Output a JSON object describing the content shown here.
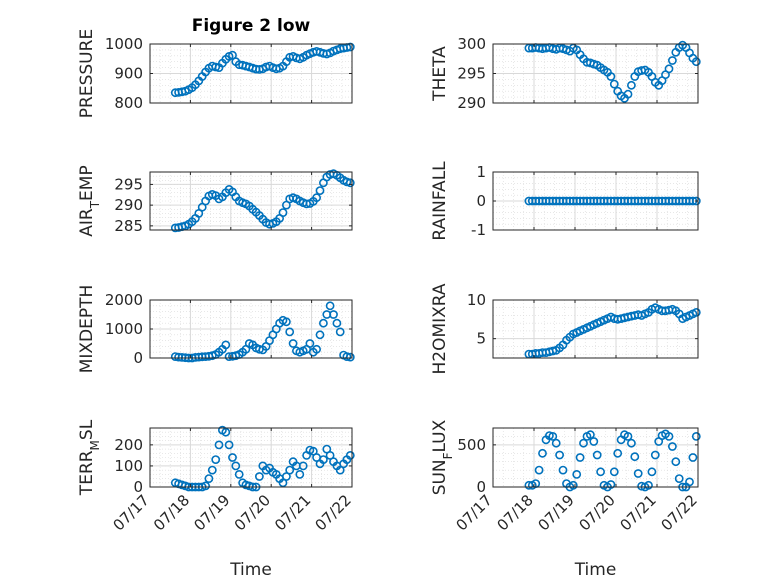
{
  "figure": {
    "title": "Figure 2 low",
    "marker_color": "#0072BD",
    "axis_color": "#262626",
    "grid_color": "#d9d9d9"
  },
  "chart_data": [
    {
      "type": "scatter",
      "title": "Figure 2 low",
      "ylabel": "PRESSURE",
      "xlabel": "",
      "xlim": [
        "07/17",
        "07/22"
      ],
      "ylim": [
        800,
        1000
      ],
      "yticks": [
        800,
        900,
        1000
      ],
      "xticks": [
        "07/17",
        "07/18",
        "07/19",
        "07/20",
        "07/21",
        "07/22"
      ],
      "x": [
        "07/17 15:00",
        "07/17 17:00",
        "07/17 19:00",
        "07/17 21:00",
        "07/17 23:00",
        "07/18 01:00",
        "07/18 03:00",
        "07/18 05:00",
        "07/18 07:00",
        "07/18 09:00",
        "07/18 11:00",
        "07/18 13:00",
        "07/18 15:00",
        "07/18 17:00",
        "07/18 19:00",
        "07/18 21:00",
        "07/18 23:00",
        "07/19 01:00",
        "07/19 03:00",
        "07/19 05:00",
        "07/19 07:00",
        "07/19 09:00",
        "07/19 11:00",
        "07/19 13:00",
        "07/19 15:00",
        "07/19 17:00",
        "07/19 19:00",
        "07/19 21:00",
        "07/19 23:00",
        "07/20 01:00",
        "07/20 03:00",
        "07/20 05:00",
        "07/20 07:00",
        "07/20 09:00",
        "07/20 11:00",
        "07/20 13:00",
        "07/20 15:00",
        "07/20 17:00",
        "07/20 19:00",
        "07/20 21:00",
        "07/20 23:00",
        "07/21 01:00",
        "07/21 03:00",
        "07/21 05:00",
        "07/21 07:00",
        "07/21 09:00",
        "07/21 11:00",
        "07/21 13:00",
        "07/21 15:00",
        "07/21 17:00",
        "07/21 19:00",
        "07/21 21:00",
        "07/21 23:00"
      ],
      "y": [
        835,
        836,
        838,
        840,
        845,
        852,
        862,
        875,
        890,
        905,
        918,
        925,
        922,
        920,
        935,
        948,
        958,
        962,
        940,
        930,
        928,
        925,
        922,
        918,
        915,
        914,
        916,
        922,
        925,
        920,
        916,
        918,
        925,
        940,
        955,
        958,
        953,
        950,
        955,
        962,
        967,
        972,
        975,
        972,
        968,
        966,
        970,
        976,
        980,
        984,
        986,
        988,
        990
      ]
    },
    {
      "type": "scatter",
      "title": "",
      "ylabel": "THETA",
      "xlabel": "",
      "xlim": [
        "07/17",
        "07/22"
      ],
      "ylim": [
        290,
        300
      ],
      "yticks": [
        290,
        295,
        300
      ],
      "xticks": [
        "07/17",
        "07/18",
        "07/19",
        "07/20",
        "07/21",
        "07/22"
      ],
      "x": [
        "07/17 21:00",
        "07/17 23:00",
        "07/18 01:00",
        "07/18 03:00",
        "07/18 05:00",
        "07/18 07:00",
        "07/18 09:00",
        "07/18 11:00",
        "07/18 13:00",
        "07/18 15:00",
        "07/18 17:00",
        "07/18 19:00",
        "07/18 21:00",
        "07/18 23:00",
        "07/19 01:00",
        "07/19 03:00",
        "07/19 05:00",
        "07/19 07:00",
        "07/19 09:00",
        "07/19 11:00",
        "07/19 13:00",
        "07/19 15:00",
        "07/19 17:00",
        "07/19 19:00",
        "07/19 21:00",
        "07/19 23:00",
        "07/20 01:00",
        "07/20 03:00",
        "07/20 05:00",
        "07/20 07:00",
        "07/20 09:00",
        "07/20 11:00",
        "07/20 13:00",
        "07/20 15:00",
        "07/20 17:00",
        "07/20 19:00",
        "07/20 21:00",
        "07/20 23:00",
        "07/21 01:00",
        "07/21 03:00",
        "07/21 05:00",
        "07/21 07:00",
        "07/21 09:00",
        "07/21 11:00",
        "07/21 13:00",
        "07/21 15:00",
        "07/21 17:00",
        "07/21 19:00",
        "07/21 21:00",
        "07/21 23:00"
      ],
      "y": [
        299.3,
        299.3,
        299.4,
        299.3,
        299.2,
        299.3,
        299.4,
        299.2,
        299.1,
        299.3,
        299.2,
        299.0,
        298.8,
        299.3,
        299.0,
        298.2,
        297.5,
        296.9,
        296.8,
        296.6,
        296.4,
        296.0,
        295.6,
        295.2,
        294.5,
        293.2,
        292.0,
        291.2,
        290.8,
        291.5,
        293.0,
        294.5,
        295.3,
        295.5,
        295.6,
        295.2,
        294.5,
        293.5,
        293.0,
        293.8,
        294.8,
        295.8,
        297.2,
        298.6,
        299.4,
        299.8,
        299.4,
        298.5,
        297.6,
        297.0
      ]
    },
    {
      "type": "scatter",
      "title": "",
      "ylabel": "AIR_TEMP",
      "xlabel": "",
      "xlim": [
        "07/17",
        "07/22"
      ],
      "ylim": [
        284,
        298
      ],
      "yticks": [
        285,
        290,
        295
      ],
      "xticks": [
        "07/17",
        "07/18",
        "07/19",
        "07/20",
        "07/21",
        "07/22"
      ],
      "x": [
        "07/17 15:00",
        "07/17 17:00",
        "07/17 19:00",
        "07/17 21:00",
        "07/17 23:00",
        "07/18 01:00",
        "07/18 03:00",
        "07/18 05:00",
        "07/18 07:00",
        "07/18 09:00",
        "07/18 11:00",
        "07/18 13:00",
        "07/18 15:00",
        "07/18 17:00",
        "07/18 19:00",
        "07/18 21:00",
        "07/18 23:00",
        "07/19 01:00",
        "07/19 03:00",
        "07/19 05:00",
        "07/19 07:00",
        "07/19 09:00",
        "07/19 11:00",
        "07/19 13:00",
        "07/19 15:00",
        "07/19 17:00",
        "07/19 19:00",
        "07/19 21:00",
        "07/19 23:00",
        "07/20 01:00",
        "07/20 03:00",
        "07/20 05:00",
        "07/20 07:00",
        "07/20 09:00",
        "07/20 11:00",
        "07/20 13:00",
        "07/20 15:00",
        "07/20 17:00",
        "07/20 19:00",
        "07/20 21:00",
        "07/20 23:00",
        "07/21 01:00",
        "07/21 03:00",
        "07/21 05:00",
        "07/21 07:00",
        "07/21 09:00",
        "07/21 11:00",
        "07/21 13:00",
        "07/21 15:00",
        "07/21 17:00",
        "07/21 19:00",
        "07/21 21:00",
        "07/21 23:00"
      ],
      "y": [
        284.5,
        284.6,
        284.8,
        285.0,
        285.4,
        286.0,
        286.8,
        288.0,
        289.5,
        291.0,
        292.2,
        292.6,
        292.3,
        291.5,
        292.0,
        293.0,
        293.8,
        293.2,
        292.0,
        291.0,
        290.6,
        290.3,
        289.8,
        289.0,
        288.3,
        287.5,
        286.6,
        285.8,
        285.4,
        285.6,
        286.0,
        286.8,
        288.2,
        290.0,
        291.5,
        291.8,
        291.5,
        291.0,
        290.6,
        290.3,
        290.4,
        290.9,
        291.8,
        293.5,
        295.4,
        296.8,
        297.4,
        297.6,
        297.2,
        296.6,
        296.0,
        295.6,
        295.4
      ]
    },
    {
      "type": "scatter",
      "title": "",
      "ylabel": "RAINFALL",
      "xlabel": "",
      "xlim": [
        "07/17",
        "07/22"
      ],
      "ylim": [
        -1,
        1
      ],
      "yticks": [
        -1,
        0,
        1
      ],
      "xticks": [
        "07/17",
        "07/18",
        "07/19",
        "07/20",
        "07/21",
        "07/22"
      ],
      "x": [
        "07/17 21:00",
        "07/17 23:00",
        "07/18 01:00",
        "07/18 03:00",
        "07/18 05:00",
        "07/18 07:00",
        "07/18 09:00",
        "07/18 11:00",
        "07/18 13:00",
        "07/18 15:00",
        "07/18 17:00",
        "07/18 19:00",
        "07/18 21:00",
        "07/18 23:00",
        "07/19 01:00",
        "07/19 03:00",
        "07/19 05:00",
        "07/19 07:00",
        "07/19 09:00",
        "07/19 11:00",
        "07/19 13:00",
        "07/19 15:00",
        "07/19 17:00",
        "07/19 19:00",
        "07/19 21:00",
        "07/19 23:00",
        "07/20 01:00",
        "07/20 03:00",
        "07/20 05:00",
        "07/20 07:00",
        "07/20 09:00",
        "07/20 11:00",
        "07/20 13:00",
        "07/20 15:00",
        "07/20 17:00",
        "07/20 19:00",
        "07/20 21:00",
        "07/20 23:00",
        "07/21 01:00",
        "07/21 03:00",
        "07/21 05:00",
        "07/21 07:00",
        "07/21 09:00",
        "07/21 11:00",
        "07/21 13:00",
        "07/21 15:00",
        "07/21 17:00",
        "07/21 19:00",
        "07/21 21:00",
        "07/21 23:00"
      ],
      "y": [
        0,
        0,
        0,
        0,
        0,
        0,
        0,
        0,
        0,
        0,
        0,
        0,
        0,
        0,
        0,
        0,
        0,
        0,
        0,
        0,
        0,
        0,
        0,
        0,
        0,
        0,
        0,
        0,
        0,
        0,
        0,
        0,
        0,
        0,
        0,
        0,
        0,
        0,
        0,
        0,
        0,
        0,
        0,
        0,
        0,
        0,
        0,
        0,
        0,
        0
      ]
    },
    {
      "type": "scatter",
      "title": "",
      "ylabel": "MIXDEPTH",
      "xlabel": "",
      "xlim": [
        "07/17",
        "07/22"
      ],
      "ylim": [
        0,
        2000
      ],
      "yticks": [
        0,
        1000,
        2000
      ],
      "xticks": [
        "07/17",
        "07/18",
        "07/19",
        "07/20",
        "07/21",
        "07/22"
      ],
      "x": [
        "07/17 15:00",
        "07/17 17:00",
        "07/17 19:00",
        "07/17 21:00",
        "07/17 23:00",
        "07/18 01:00",
        "07/18 03:00",
        "07/18 05:00",
        "07/18 07:00",
        "07/18 09:00",
        "07/18 11:00",
        "07/18 13:00",
        "07/18 15:00",
        "07/18 17:00",
        "07/18 19:00",
        "07/18 21:00",
        "07/18 23:00",
        "07/19 01:00",
        "07/19 03:00",
        "07/19 05:00",
        "07/19 07:00",
        "07/19 09:00",
        "07/19 11:00",
        "07/19 13:00",
        "07/19 15:00",
        "07/19 17:00",
        "07/19 19:00",
        "07/19 21:00",
        "07/19 23:00",
        "07/20 01:00",
        "07/20 03:00",
        "07/20 05:00",
        "07/20 07:00",
        "07/20 09:00",
        "07/20 11:00",
        "07/20 13:00",
        "07/20 15:00",
        "07/20 17:00",
        "07/20 19:00",
        "07/20 21:00",
        "07/20 23:00",
        "07/21 01:00",
        "07/21 03:00",
        "07/21 05:00",
        "07/21 07:00",
        "07/21 09:00",
        "07/21 11:00",
        "07/21 13:00",
        "07/21 15:00",
        "07/21 17:00",
        "07/21 19:00",
        "07/21 21:00",
        "07/21 23:00"
      ],
      "y": [
        50,
        30,
        20,
        10,
        0,
        0,
        20,
        30,
        40,
        50,
        60,
        80,
        120,
        200,
        300,
        450,
        50,
        60,
        80,
        120,
        200,
        300,
        500,
        450,
        350,
        300,
        280,
        400,
        600,
        800,
        1000,
        1200,
        1300,
        1250,
        900,
        500,
        250,
        200,
        250,
        300,
        500,
        200,
        300,
        800,
        1200,
        1500,
        1800,
        1500,
        1200,
        900,
        100,
        50,
        30
      ]
    },
    {
      "type": "scatter",
      "title": "",
      "ylabel": "H2OMIXRA",
      "xlabel": "",
      "xlim": [
        "07/17",
        "07/22"
      ],
      "ylim": [
        2.5,
        10
      ],
      "yticks": [
        5,
        10
      ],
      "xticks": [
        "07/17",
        "07/18",
        "07/19",
        "07/20",
        "07/21",
        "07/22"
      ],
      "x": [
        "07/17 21:00",
        "07/17 23:00",
        "07/18 01:00",
        "07/18 03:00",
        "07/18 05:00",
        "07/18 07:00",
        "07/18 09:00",
        "07/18 11:00",
        "07/18 13:00",
        "07/18 15:00",
        "07/18 17:00",
        "07/18 19:00",
        "07/18 21:00",
        "07/18 23:00",
        "07/19 01:00",
        "07/19 03:00",
        "07/19 05:00",
        "07/19 07:00",
        "07/19 09:00",
        "07/19 11:00",
        "07/19 13:00",
        "07/19 15:00",
        "07/19 17:00",
        "07/19 19:00",
        "07/19 21:00",
        "07/19 23:00",
        "07/20 01:00",
        "07/20 03:00",
        "07/20 05:00",
        "07/20 07:00",
        "07/20 09:00",
        "07/20 11:00",
        "07/20 13:00",
        "07/20 15:00",
        "07/20 17:00",
        "07/20 19:00",
        "07/20 21:00",
        "07/20 23:00",
        "07/21 01:00",
        "07/21 03:00",
        "07/21 05:00",
        "07/21 07:00",
        "07/21 09:00",
        "07/21 11:00",
        "07/21 13:00",
        "07/21 15:00",
        "07/21 17:00",
        "07/21 19:00",
        "07/21 21:00",
        "07/21 23:00"
      ],
      "y": [
        3.0,
        3.0,
        3.1,
        3.1,
        3.2,
        3.2,
        3.3,
        3.4,
        3.5,
        3.8,
        4.2,
        4.8,
        5.2,
        5.6,
        5.8,
        6.0,
        6.2,
        6.4,
        6.6,
        6.8,
        7.0,
        7.2,
        7.4,
        7.6,
        7.8,
        7.6,
        7.5,
        7.6,
        7.7,
        7.8,
        7.9,
        8.0,
        8.1,
        8.0,
        8.2,
        8.4,
        8.8,
        9.0,
        8.8,
        8.6,
        8.6,
        8.7,
        8.8,
        8.6,
        8.2,
        7.6,
        7.8,
        8.0,
        8.2,
        8.4
      ]
    },
    {
      "type": "scatter",
      "title": "",
      "ylabel": "TERR_MSL",
      "xlabel": "Time",
      "xlim": [
        "07/17",
        "07/22"
      ],
      "ylim": [
        0,
        280
      ],
      "yticks": [
        0,
        100,
        200
      ],
      "xticks": [
        "07/17",
        "07/18",
        "07/19",
        "07/20",
        "07/21",
        "07/22"
      ],
      "x": [
        "07/17 15:00",
        "07/17 17:00",
        "07/17 19:00",
        "07/17 21:00",
        "07/17 23:00",
        "07/18 01:00",
        "07/18 03:00",
        "07/18 05:00",
        "07/18 07:00",
        "07/18 09:00",
        "07/18 11:00",
        "07/18 13:00",
        "07/18 15:00",
        "07/18 17:00",
        "07/18 19:00",
        "07/18 21:00",
        "07/18 23:00",
        "07/19 01:00",
        "07/19 03:00",
        "07/19 05:00",
        "07/19 07:00",
        "07/19 09:00",
        "07/19 11:00",
        "07/19 13:00",
        "07/19 15:00",
        "07/19 17:00",
        "07/19 19:00",
        "07/19 21:00",
        "07/19 23:00",
        "07/20 01:00",
        "07/20 03:00",
        "07/20 05:00",
        "07/20 07:00",
        "07/20 09:00",
        "07/20 11:00",
        "07/20 13:00",
        "07/20 15:00",
        "07/20 17:00",
        "07/20 19:00",
        "07/20 21:00",
        "07/20 23:00",
        "07/21 01:00",
        "07/21 03:00",
        "07/21 05:00",
        "07/21 07:00",
        "07/21 09:00",
        "07/21 11:00",
        "07/21 13:00",
        "07/21 15:00",
        "07/21 17:00",
        "07/21 19:00",
        "07/21 21:00",
        "07/21 23:00"
      ],
      "y": [
        20,
        15,
        10,
        5,
        0,
        0,
        0,
        0,
        0,
        5,
        40,
        80,
        130,
        200,
        270,
        260,
        200,
        140,
        100,
        60,
        20,
        10,
        5,
        0,
        0,
        50,
        100,
        80,
        90,
        70,
        60,
        40,
        20,
        50,
        80,
        120,
        100,
        60,
        100,
        150,
        175,
        170,
        140,
        110,
        130,
        180,
        150,
        120,
        100,
        80,
        110,
        130,
        150
      ]
    },
    {
      "type": "scatter",
      "title": "",
      "ylabel": "SUN_FLUX",
      "xlabel": "Time",
      "xlim": [
        "07/17",
        "07/22"
      ],
      "ylim": [
        0,
        700
      ],
      "yticks": [
        0,
        500
      ],
      "xticks": [
        "07/17",
        "07/18",
        "07/19",
        "07/20",
        "07/21",
        "07/22"
      ],
      "x": [
        "07/17 21:00",
        "07/17 23:00",
        "07/18 01:00",
        "07/18 03:00",
        "07/18 05:00",
        "07/18 07:00",
        "07/18 09:00",
        "07/18 11:00",
        "07/18 13:00",
        "07/18 15:00",
        "07/18 17:00",
        "07/18 19:00",
        "07/18 21:00",
        "07/18 23:00",
        "07/19 01:00",
        "07/19 03:00",
        "07/19 05:00",
        "07/19 07:00",
        "07/19 09:00",
        "07/19 11:00",
        "07/19 13:00",
        "07/19 15:00",
        "07/19 17:00",
        "07/19 19:00",
        "07/19 21:00",
        "07/19 23:00",
        "07/20 01:00",
        "07/20 03:00",
        "07/20 05:00",
        "07/20 07:00",
        "07/20 09:00",
        "07/20 11:00",
        "07/20 13:00",
        "07/20 15:00",
        "07/20 17:00",
        "07/20 19:00",
        "07/20 21:00",
        "07/20 23:00",
        "07/21 01:00",
        "07/21 03:00",
        "07/21 05:00",
        "07/21 07:00",
        "07/21 09:00",
        "07/21 11:00",
        "07/21 13:00",
        "07/21 15:00",
        "07/21 17:00",
        "07/21 19:00",
        "07/21 21:00",
        "07/21 23:00"
      ],
      "y": [
        20,
        20,
        40,
        200,
        400,
        560,
        610,
        600,
        520,
        380,
        200,
        40,
        0,
        20,
        150,
        350,
        520,
        600,
        620,
        540,
        380,
        180,
        20,
        0,
        30,
        180,
        400,
        560,
        620,
        600,
        520,
        360,
        160,
        10,
        0,
        20,
        180,
        380,
        540,
        610,
        630,
        600,
        480,
        300,
        100,
        0,
        0,
        60,
        350,
        600
      ]
    }
  ]
}
